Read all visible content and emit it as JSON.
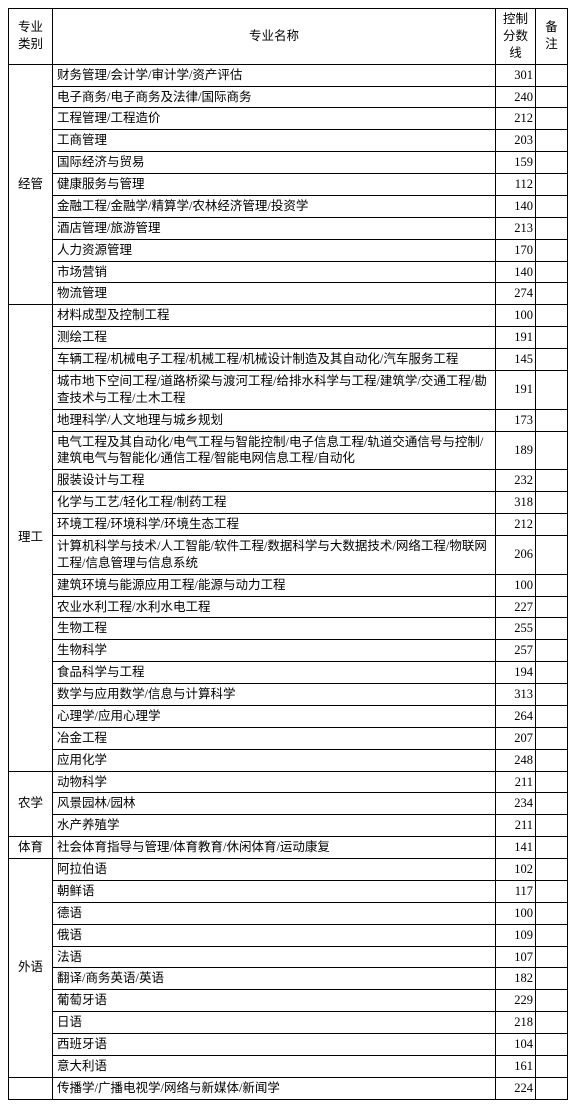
{
  "headers": {
    "category": "专业类别",
    "name": "专业名称",
    "score": "控制分数线",
    "note": "备注"
  },
  "colors": {
    "border": "#000000",
    "background": "#ffffff",
    "text": "#000000"
  },
  "font": {
    "family": "SimSun",
    "size_pt": 9
  },
  "categories": [
    {
      "label": "经管",
      "rows": [
        {
          "name": "财务管理/会计学/审计学/资产评估",
          "score": 301
        },
        {
          "name": "电子商务/电子商务及法律/国际商务",
          "score": 240
        },
        {
          "name": "工程管理/工程造价",
          "score": 212
        },
        {
          "name": "工商管理",
          "score": 203
        },
        {
          "name": "国际经济与贸易",
          "score": 159
        },
        {
          "name": "健康服务与管理",
          "score": 112
        },
        {
          "name": "金融工程/金融学/精算学/农林经济管理/投资学",
          "score": 140
        },
        {
          "name": "酒店管理/旅游管理",
          "score": 213
        },
        {
          "name": "人力资源管理",
          "score": 170
        },
        {
          "name": "市场营销",
          "score": 140
        },
        {
          "name": "物流管理",
          "score": 274
        }
      ]
    },
    {
      "label": "理工",
      "rows": [
        {
          "name": "材料成型及控制工程",
          "score": 100
        },
        {
          "name": "测绘工程",
          "score": 191
        },
        {
          "name": "车辆工程/机械电子工程/机械工程/机械设计制造及其自动化/汽车服务工程",
          "score": 145
        },
        {
          "name": "城市地下空间工程/道路桥梁与渡河工程/给排水科学与工程/建筑学/交通工程/勘查技术与工程/土木工程",
          "score": 191
        },
        {
          "name": "地理科学/人文地理与城乡规划",
          "score": 173
        },
        {
          "name": "电气工程及其自动化/电气工程与智能控制/电子信息工程/轨道交通信号与控制/建筑电气与智能化/通信工程/智能电网信息工程/自动化",
          "score": 189
        },
        {
          "name": "服装设计与工程",
          "score": 232
        },
        {
          "name": "化学与工艺/轻化工程/制药工程",
          "score": 318
        },
        {
          "name": "环境工程/环境科学/环境生态工程",
          "score": 212
        },
        {
          "name": "计算机科学与技术/人工智能/软件工程/数据科学与大数据技术/网络工程/物联网工程/信息管理与信息系统",
          "score": 206
        },
        {
          "name": "建筑环境与能源应用工程/能源与动力工程",
          "score": 100
        },
        {
          "name": "农业水利工程/水利水电工程",
          "score": 227
        },
        {
          "name": "生物工程",
          "score": 255
        },
        {
          "name": "生物科学",
          "score": 257
        },
        {
          "name": "食品科学与工程",
          "score": 194
        },
        {
          "name": "数学与应用数学/信息与计算科学",
          "score": 313
        },
        {
          "name": "心理学/应用心理学",
          "score": 264
        },
        {
          "name": "冶金工程",
          "score": 207
        },
        {
          "name": "应用化学",
          "score": 248
        }
      ]
    },
    {
      "label": "农学",
      "rows": [
        {
          "name": "动物科学",
          "score": 211
        },
        {
          "name": "风景园林/园林",
          "score": 234
        },
        {
          "name": "水产养殖学",
          "score": 211
        }
      ]
    },
    {
      "label": "体育",
      "rows": [
        {
          "name": "社会体育指导与管理/体育教育/休闲体育/运动康复",
          "score": 141
        }
      ]
    },
    {
      "label": "外语",
      "rows": [
        {
          "name": "阿拉伯语",
          "score": 102
        },
        {
          "name": "朝鲜语",
          "score": 117
        },
        {
          "name": "德语",
          "score": 100
        },
        {
          "name": "俄语",
          "score": 109
        },
        {
          "name": "法语",
          "score": 107
        },
        {
          "name": "翻译/商务英语/英语",
          "score": 182
        },
        {
          "name": "葡萄牙语",
          "score": 229
        },
        {
          "name": "日语",
          "score": 218
        },
        {
          "name": "西班牙语",
          "score": 104
        },
        {
          "name": "意大利语",
          "score": 161
        }
      ]
    },
    {
      "label": "",
      "rows": [
        {
          "name": "传播学/广播电视学/网络与新媒体/新闻学",
          "score": 224
        }
      ]
    }
  ]
}
